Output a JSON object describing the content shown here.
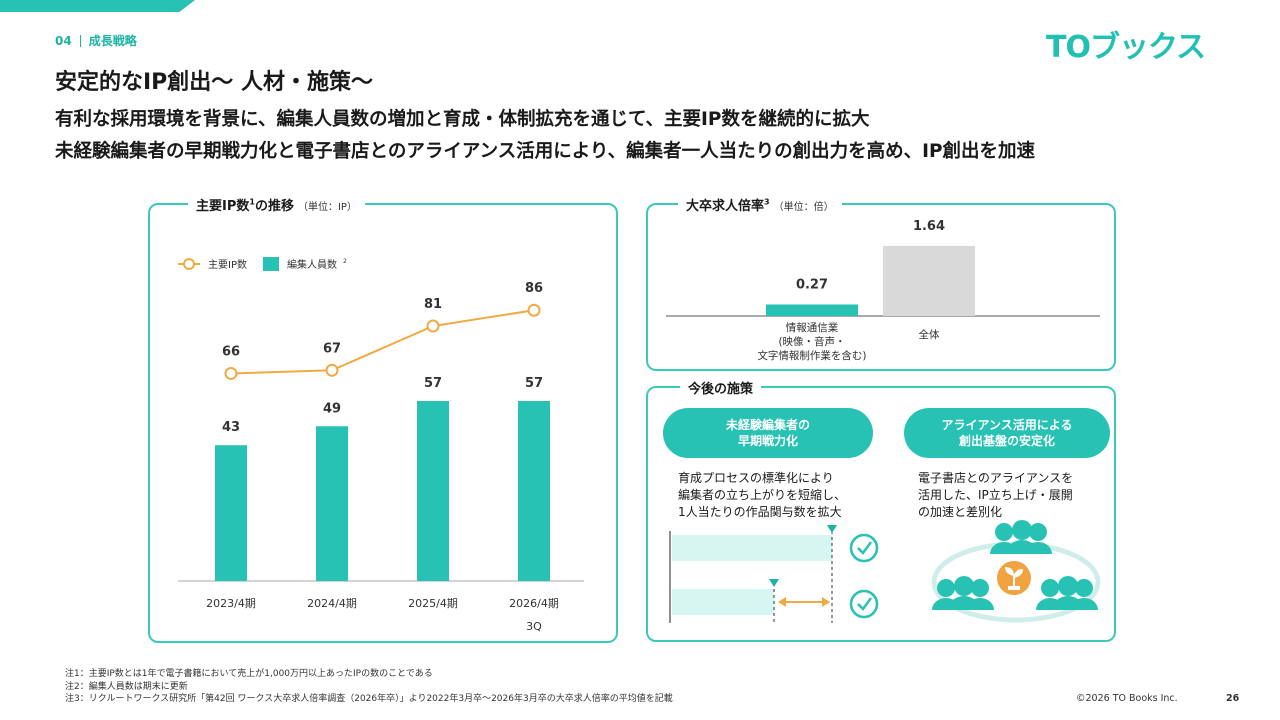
{
  "header": {
    "section_number": "04",
    "section_label": "成長戦略",
    "logo": "TOブックス",
    "title": "安定的なIP創出〜 人材・施策〜",
    "subtitle_line1": "有利な採用環境を背景に、編集人員数の増加と育成・体制拡充を通じて、主要IP数を継続的に拡大",
    "subtitle_line2": "未経験編集者の早期戦力化と電子書店とのアライアンス活用により、編集者一人当たりの創出力を高め、IP創出を加速"
  },
  "colors": {
    "accent": "#27c2b3",
    "line": "#efaa45",
    "gray_bar": "#d9d9d9"
  },
  "chart_data": [
    {
      "type": "bar+line",
      "title": "主要IP数",
      "title_sup": "1",
      "title_suffix": "の推移",
      "unit": "（単位：IP）",
      "legend": {
        "line_label": "主要IP数",
        "bar_label": "編集人員数",
        "bar_label_sup": "2"
      },
      "categories": [
        "2023/4期",
        "2024/4期",
        "2025/4期",
        "2026/4期"
      ],
      "category_sub": [
        "",
        "",
        "",
        "3Q"
      ],
      "series": [
        {
          "name": "編集人員数",
          "kind": "bar",
          "values": [
            43,
            49,
            57,
            57
          ]
        },
        {
          "name": "主要IP数",
          "kind": "line",
          "values": [
            66,
            67,
            81,
            86
          ]
        }
      ]
    },
    {
      "type": "bar",
      "title": "大卒求人倍率",
      "title_sup": "3",
      "unit": "（単位：倍）",
      "categories": [
        "情報通信業",
        "全体"
      ],
      "category_notes": [
        "(映像・音声・",
        ""
      ],
      "category_notes2": [
        "文字情報制作業を含む)",
        ""
      ],
      "values": [
        0.27,
        1.64
      ],
      "value_labels": [
        "0.27",
        "1.64"
      ],
      "ylim": [
        0,
        1.8
      ]
    }
  ],
  "future": {
    "title": "今後の施策",
    "pill1_line1": "未経験編集者の",
    "pill1_line2": "早期戦力化",
    "desc1_line1": "育成プロセスの標準化により",
    "desc1_line2": "編集者の立ち上がりを短縮し、",
    "desc1_line3": "1人当たりの作品関与数を拡大",
    "pill2_line1": "アライアンス活用による",
    "pill2_line2": "創出基盤の安定化",
    "desc2_line1": "電子書店とのアライアンスを",
    "desc2_line2": "活用した、IP立ち上げ・展開",
    "desc2_line3": "の加速と差別化"
  },
  "footer": {
    "note1": "注1：主要IP数とは1年で電子書籍において売上が1,000万円以上あったIPの数のことである",
    "note2": "注2：編集人員数は期末に更新",
    "note3": "注3：リクルートワークス研究所「第42回 ワークス大卒求人倍率調査（2026年卒）」より2022年3月卒〜2026年3月卒の大卒求人倍率の平均値を記載",
    "copyright": "©2026  TO Books Inc.",
    "page_number": "26"
  }
}
